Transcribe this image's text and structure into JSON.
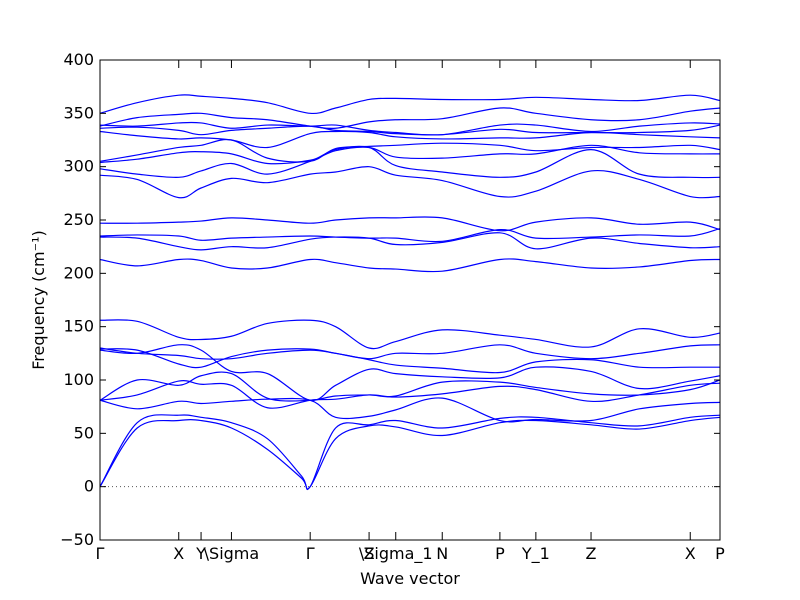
{
  "chart_data": {
    "type": "line",
    "xlabel": "Wave vector",
    "ylabel": "Frequency (cm⁻¹)",
    "ylim": [
      -50,
      400
    ],
    "yticks": [
      -50,
      0,
      50,
      100,
      150,
      200,
      250,
      300,
      350,
      400
    ],
    "grid": false,
    "zero_line": true,
    "line_color": "#0000ff",
    "k_points": [
      {
        "label": "Γ",
        "x": 0
      },
      {
        "label": "X",
        "x": 0.127
      },
      {
        "label": "Y",
        "x": 0.163
      },
      {
        "label": "\\Sigma",
        "x": 0.212
      },
      {
        "label": "Γ",
        "x": 0.339
      },
      {
        "label": "Z",
        "x": 0.434
      },
      {
        "label": "\\Sigma_1",
        "x": 0.477
      },
      {
        "label": "N",
        "x": 0.552
      },
      {
        "label": "P",
        "x": 0.645
      },
      {
        "label": "Y_1",
        "x": 0.703
      },
      {
        "label": "Z",
        "x": 0.792
      },
      {
        "label": "X",
        "x": 0.952
      },
      {
        "label": "P",
        "x": 1.0
      }
    ],
    "series": [
      {
        "x": [
          0,
          0.06,
          0.127,
          0.163,
          0.212,
          0.27,
          0.325,
          0.339,
          0.38,
          0.434,
          0.477,
          0.552,
          0.645,
          0.703,
          0.792,
          0.87,
          0.952,
          1.0
        ],
        "y": [
          0,
          55,
          62,
          62,
          55,
          35,
          8,
          0,
          45,
          57,
          56,
          48,
          60,
          62,
          58,
          54,
          62,
          65
        ]
      },
      {
        "x": [
          0,
          0.06,
          0.127,
          0.163,
          0.212,
          0.27,
          0.325,
          0.339,
          0.38,
          0.434,
          0.477,
          0.552,
          0.645,
          0.703,
          0.792,
          0.87,
          0.952,
          1.0
        ],
        "y": [
          0,
          60,
          67,
          65,
          60,
          45,
          10,
          0,
          55,
          58,
          62,
          55,
          64,
          65,
          60,
          57,
          65,
          67
        ]
      },
      {
        "x": [
          0,
          0.06,
          0.127,
          0.163,
          0.212,
          0.27,
          0.339,
          0.38,
          0.434,
          0.477,
          0.552,
          0.645,
          0.703,
          0.792,
          0.87,
          0.952,
          1.0
        ],
        "y": [
          81,
          73,
          80,
          78,
          80,
          82,
          81,
          65,
          66,
          72,
          83,
          62,
          63,
          62,
          73,
          78,
          79
        ]
      },
      {
        "x": [
          0,
          0.06,
          0.127,
          0.163,
          0.212,
          0.27,
          0.339,
          0.38,
          0.434,
          0.477,
          0.552,
          0.645,
          0.703,
          0.792,
          0.87,
          0.952,
          1.0
        ],
        "y": [
          81,
          86,
          99,
          96,
          95,
          74,
          81,
          82,
          86,
          84,
          87,
          94,
          91,
          80,
          86,
          95,
          97
        ]
      },
      {
        "x": [
          0,
          0.06,
          0.127,
          0.163,
          0.212,
          0.27,
          0.339,
          0.38,
          0.434,
          0.477,
          0.552,
          0.645,
          0.703,
          0.792,
          0.87,
          0.952,
          1.0
        ],
        "y": [
          81,
          100,
          95,
          104,
          106,
          83,
          81,
          85,
          86,
          85,
          98,
          98,
          93,
          87,
          86,
          91,
          100
        ]
      },
      {
        "x": [
          0,
          0.06,
          0.127,
          0.163,
          0.212,
          0.27,
          0.339,
          0.38,
          0.434,
          0.477,
          0.552,
          0.645,
          0.703,
          0.792,
          0.87,
          0.952,
          1.0
        ],
        "y": [
          128,
          125,
          133,
          128,
          108,
          106,
          81,
          95,
          110,
          106,
          103,
          102,
          112,
          108,
          92,
          99,
          104
        ]
      },
      {
        "x": [
          0,
          0.06,
          0.127,
          0.163,
          0.212,
          0.27,
          0.339,
          0.38,
          0.434,
          0.477,
          0.552,
          0.645,
          0.703,
          0.792,
          0.87,
          0.952,
          1.0
        ],
        "y": [
          130,
          125,
          123,
          120,
          120,
          125,
          128,
          125,
          119,
          114,
          111,
          107,
          117,
          119,
          112,
          112,
          112
        ]
      },
      {
        "x": [
          0,
          0.06,
          0.127,
          0.163,
          0.212,
          0.27,
          0.339,
          0.38,
          0.434,
          0.477,
          0.552,
          0.645,
          0.703,
          0.792,
          0.87,
          0.952,
          1.0
        ],
        "y": [
          129,
          128,
          115,
          112,
          122,
          128,
          129,
          125,
          120,
          125,
          125,
          133,
          125,
          120,
          125,
          132,
          133
        ]
      },
      {
        "x": [
          0,
          0.06,
          0.127,
          0.163,
          0.212,
          0.27,
          0.339,
          0.38,
          0.434,
          0.477,
          0.552,
          0.645,
          0.703,
          0.792,
          0.87,
          0.952,
          1.0
        ],
        "y": [
          156,
          155,
          140,
          138,
          141,
          153,
          156,
          150,
          130,
          136,
          147,
          142,
          138,
          131,
          148,
          140,
          144
        ]
      },
      {
        "x": [
          0,
          0.06,
          0.127,
          0.163,
          0.212,
          0.27,
          0.339,
          0.38,
          0.434,
          0.477,
          0.552,
          0.645,
          0.703,
          0.792,
          0.87,
          0.952,
          1.0
        ],
        "y": [
          213,
          207,
          213,
          212,
          205,
          205,
          213,
          210,
          205,
          204,
          202,
          213,
          211,
          205,
          206,
          212,
          213
        ]
      },
      {
        "x": [
          0,
          0.06,
          0.127,
          0.163,
          0.212,
          0.27,
          0.339,
          0.38,
          0.434,
          0.477,
          0.552,
          0.645,
          0.703,
          0.792,
          0.87,
          0.952,
          1.0
        ],
        "y": [
          234,
          233,
          225,
          222,
          225,
          224,
          232,
          234,
          233,
          227,
          229,
          238,
          223,
          233,
          228,
          224,
          225
        ]
      },
      {
        "x": [
          0,
          0.06,
          0.127,
          0.163,
          0.212,
          0.27,
          0.339,
          0.38,
          0.434,
          0.477,
          0.552,
          0.645,
          0.703,
          0.792,
          0.87,
          0.952,
          1.0
        ],
        "y": [
          235,
          236,
          235,
          231,
          233,
          234,
          235,
          234,
          233,
          233,
          230,
          241,
          233,
          234,
          236,
          235,
          242
        ]
      },
      {
        "x": [
          0,
          0.06,
          0.127,
          0.163,
          0.212,
          0.27,
          0.339,
          0.38,
          0.434,
          0.477,
          0.552,
          0.645,
          0.703,
          0.792,
          0.87,
          0.952,
          1.0
        ],
        "y": [
          247,
          247,
          248,
          249,
          252,
          250,
          247,
          250,
          252,
          252,
          252,
          240,
          248,
          252,
          246,
          248,
          241
        ]
      },
      {
        "x": [
          0,
          0.06,
          0.127,
          0.163,
          0.212,
          0.27,
          0.339,
          0.38,
          0.434,
          0.477,
          0.552,
          0.645,
          0.703,
          0.792,
          0.87,
          0.952,
          1.0
        ],
        "y": [
          292,
          288,
          271,
          280,
          289,
          285,
          293,
          295,
          300,
          292,
          287,
          272,
          277,
          296,
          288,
          272,
          272
        ]
      },
      {
        "x": [
          0,
          0.06,
          0.127,
          0.163,
          0.212,
          0.27,
          0.339,
          0.38,
          0.434,
          0.477,
          0.552,
          0.645,
          0.703,
          0.792,
          0.87,
          0.952,
          1.0
        ],
        "y": [
          298,
          293,
          290,
          296,
          303,
          293,
          305,
          316,
          318,
          301,
          295,
          290,
          295,
          316,
          293,
          290,
          290
        ]
      },
      {
        "x": [
          0,
          0.06,
          0.127,
          0.163,
          0.212,
          0.27,
          0.339,
          0.38,
          0.434,
          0.477,
          0.552,
          0.645,
          0.703,
          0.792,
          0.87,
          0.952,
          1.0
        ],
        "y": [
          304,
          307,
          313,
          314,
          312,
          303,
          306,
          315,
          318,
          309,
          308,
          312,
          312,
          320,
          313,
          312,
          312
        ]
      },
      {
        "x": [
          0,
          0.06,
          0.127,
          0.163,
          0.212,
          0.27,
          0.339,
          0.38,
          0.434,
          0.477,
          0.552,
          0.645,
          0.703,
          0.792,
          0.87,
          0.952,
          1.0
        ],
        "y": [
          305,
          311,
          318,
          320,
          325,
          308,
          305,
          317,
          319,
          320,
          322,
          320,
          315,
          318,
          318,
          320,
          316
        ]
      },
      {
        "x": [
          0,
          0.06,
          0.127,
          0.163,
          0.212,
          0.27,
          0.339,
          0.38,
          0.434,
          0.477,
          0.552,
          0.645,
          0.703,
          0.792,
          0.87,
          0.952,
          1.0
        ],
        "y": [
          333,
          329,
          326,
          327,
          325,
          318,
          331,
          333,
          332,
          328,
          326,
          327,
          327,
          332,
          330,
          328,
          327
        ]
      },
      {
        "x": [
          0,
          0.06,
          0.127,
          0.163,
          0.212,
          0.27,
          0.339,
          0.38,
          0.434,
          0.477,
          0.552,
          0.645,
          0.703,
          0.792,
          0.87,
          0.952,
          1.0
        ],
        "y": [
          336,
          337,
          334,
          330,
          334,
          336,
          338,
          334,
          333,
          331,
          330,
          335,
          332,
          332,
          332,
          334,
          339
        ]
      },
      {
        "x": [
          0,
          0.06,
          0.127,
          0.163,
          0.212,
          0.27,
          0.339,
          0.38,
          0.434,
          0.477,
          0.552,
          0.645,
          0.703,
          0.792,
          0.87,
          0.952,
          1.0
        ],
        "y": [
          339,
          338,
          341,
          341,
          336,
          339,
          338,
          339,
          334,
          332,
          330,
          339,
          339,
          333,
          338,
          341,
          340
        ]
      },
      {
        "x": [
          0,
          0.06,
          0.127,
          0.163,
          0.212,
          0.27,
          0.339,
          0.38,
          0.434,
          0.477,
          0.552,
          0.645,
          0.703,
          0.792,
          0.87,
          0.952,
          1.0
        ],
        "y": [
          338,
          346,
          349,
          350,
          346,
          344,
          338,
          336,
          342,
          344,
          345,
          355,
          350,
          344,
          344,
          352,
          355
        ]
      },
      {
        "x": [
          0,
          0.06,
          0.127,
          0.163,
          0.212,
          0.27,
          0.339,
          0.38,
          0.434,
          0.477,
          0.552,
          0.645,
          0.703,
          0.792,
          0.87,
          0.952,
          1.0
        ],
        "y": [
          350,
          360,
          367,
          366,
          364,
          360,
          350,
          355,
          363,
          364,
          363,
          363,
          365,
          363,
          362,
          367,
          362
        ]
      }
    ]
  }
}
